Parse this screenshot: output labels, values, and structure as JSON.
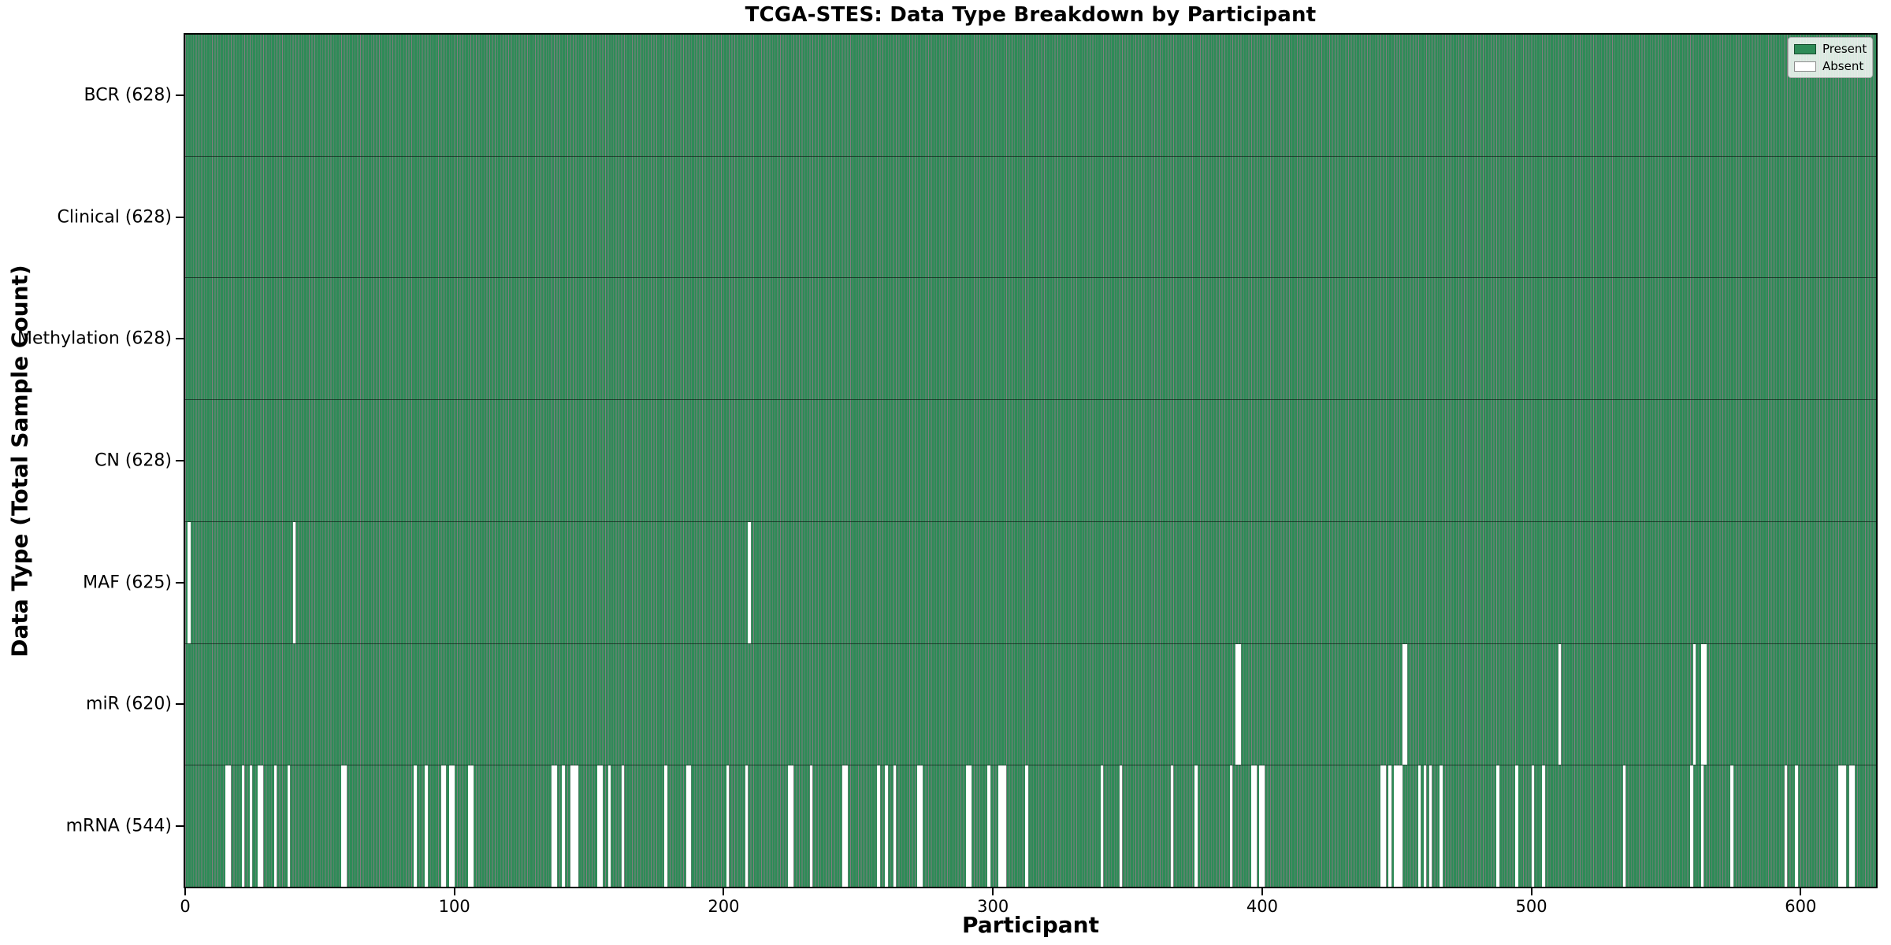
{
  "chart_data": {
    "type": "heatmap",
    "title": "TCGA-STES: Data Type Breakdown by Participant",
    "xlabel": "Participant",
    "ylabel": "Data Type (Total Sample Count)",
    "x_ticks": [
      0,
      100,
      200,
      300,
      400,
      500,
      600
    ],
    "x_range": [
      0,
      628
    ],
    "n_participants": 628,
    "grid": false,
    "legend": {
      "position": "upper right",
      "entries": [
        {
          "label": "Present",
          "color": "#2e8b57"
        },
        {
          "label": "Absent",
          "color": "#ffffff"
        }
      ]
    },
    "colors": {
      "present": "#2e8b57",
      "absent": "#ffffff",
      "bar_edge": "#000000",
      "background": "#ffffff"
    },
    "rows": [
      {
        "data_type": "BCR",
        "label": "BCR (628)",
        "present_count": 628,
        "absent": []
      },
      {
        "data_type": "Clinical",
        "label": "Clinical (628)",
        "present_count": 628,
        "absent": []
      },
      {
        "data_type": "Methylation",
        "label": "Methylation (628)",
        "present_count": 628,
        "absent": []
      },
      {
        "data_type": "CN",
        "label": "CN (628)",
        "present_count": 628,
        "absent": []
      },
      {
        "data_type": "MAF",
        "label": "MAF (625)",
        "present_count": 625,
        "absent": [
          1,
          40,
          209
        ]
      },
      {
        "data_type": "miR",
        "label": "miR (620)",
        "present_count": 620,
        "absent": [
          390,
          391,
          452,
          453,
          510,
          560,
          563,
          564
        ]
      },
      {
        "data_type": "mRNA",
        "label": "mRNA (544)",
        "present_count": 544,
        "absent": [
          15,
          16,
          21,
          24,
          27,
          28,
          33,
          38,
          58,
          59,
          85,
          89,
          95,
          96,
          98,
          99,
          105,
          106,
          136,
          137,
          140,
          143,
          144,
          145,
          153,
          154,
          157,
          162,
          178,
          186,
          187,
          201,
          208,
          224,
          225,
          232,
          244,
          245,
          257,
          260,
          263,
          272,
          273,
          290,
          291,
          298,
          302,
          303,
          304,
          312,
          340,
          347,
          366,
          375,
          388,
          396,
          397,
          399,
          400,
          444,
          445,
          447,
          449,
          450,
          451,
          458,
          460,
          462,
          466,
          487,
          494,
          500,
          504,
          534,
          559,
          563,
          574,
          594,
          598,
          614,
          615,
          616,
          618,
          619
        ]
      }
    ]
  }
}
